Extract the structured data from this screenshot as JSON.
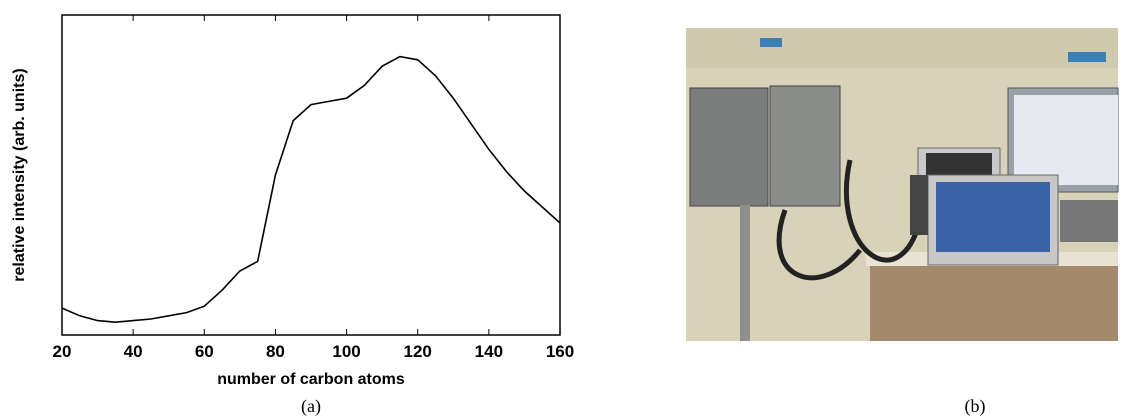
{
  "chart_data": {
    "type": "line",
    "xlabel": "number of carbon atoms",
    "ylabel": "relative intensity (arb. units)",
    "x": [
      20,
      25,
      30,
      35,
      40,
      45,
      50,
      55,
      60,
      65,
      70,
      75,
      80,
      85,
      90,
      95,
      100,
      105,
      110,
      115,
      120,
      125,
      130,
      135,
      140,
      145,
      150,
      155,
      160
    ],
    "series": [
      {
        "color": "#000000",
        "values": [
          8.4,
          6,
          4.5,
          4,
          4.5,
          5,
          6,
          7,
          9,
          14,
          20,
          23,
          50,
          67,
          72,
          73,
          74,
          78,
          84,
          87,
          86,
          81,
          74,
          66,
          58,
          51,
          45,
          40,
          35
        ]
      }
    ],
    "xlim": [
      20,
      160
    ],
    "xticks": [
      20,
      40,
      60,
      80,
      100,
      120,
      140,
      160
    ],
    "ylim": [
      0,
      100
    ]
  },
  "panels": [
    {
      "label": "(a)"
    },
    {
      "label": "(b)"
    }
  ]
}
